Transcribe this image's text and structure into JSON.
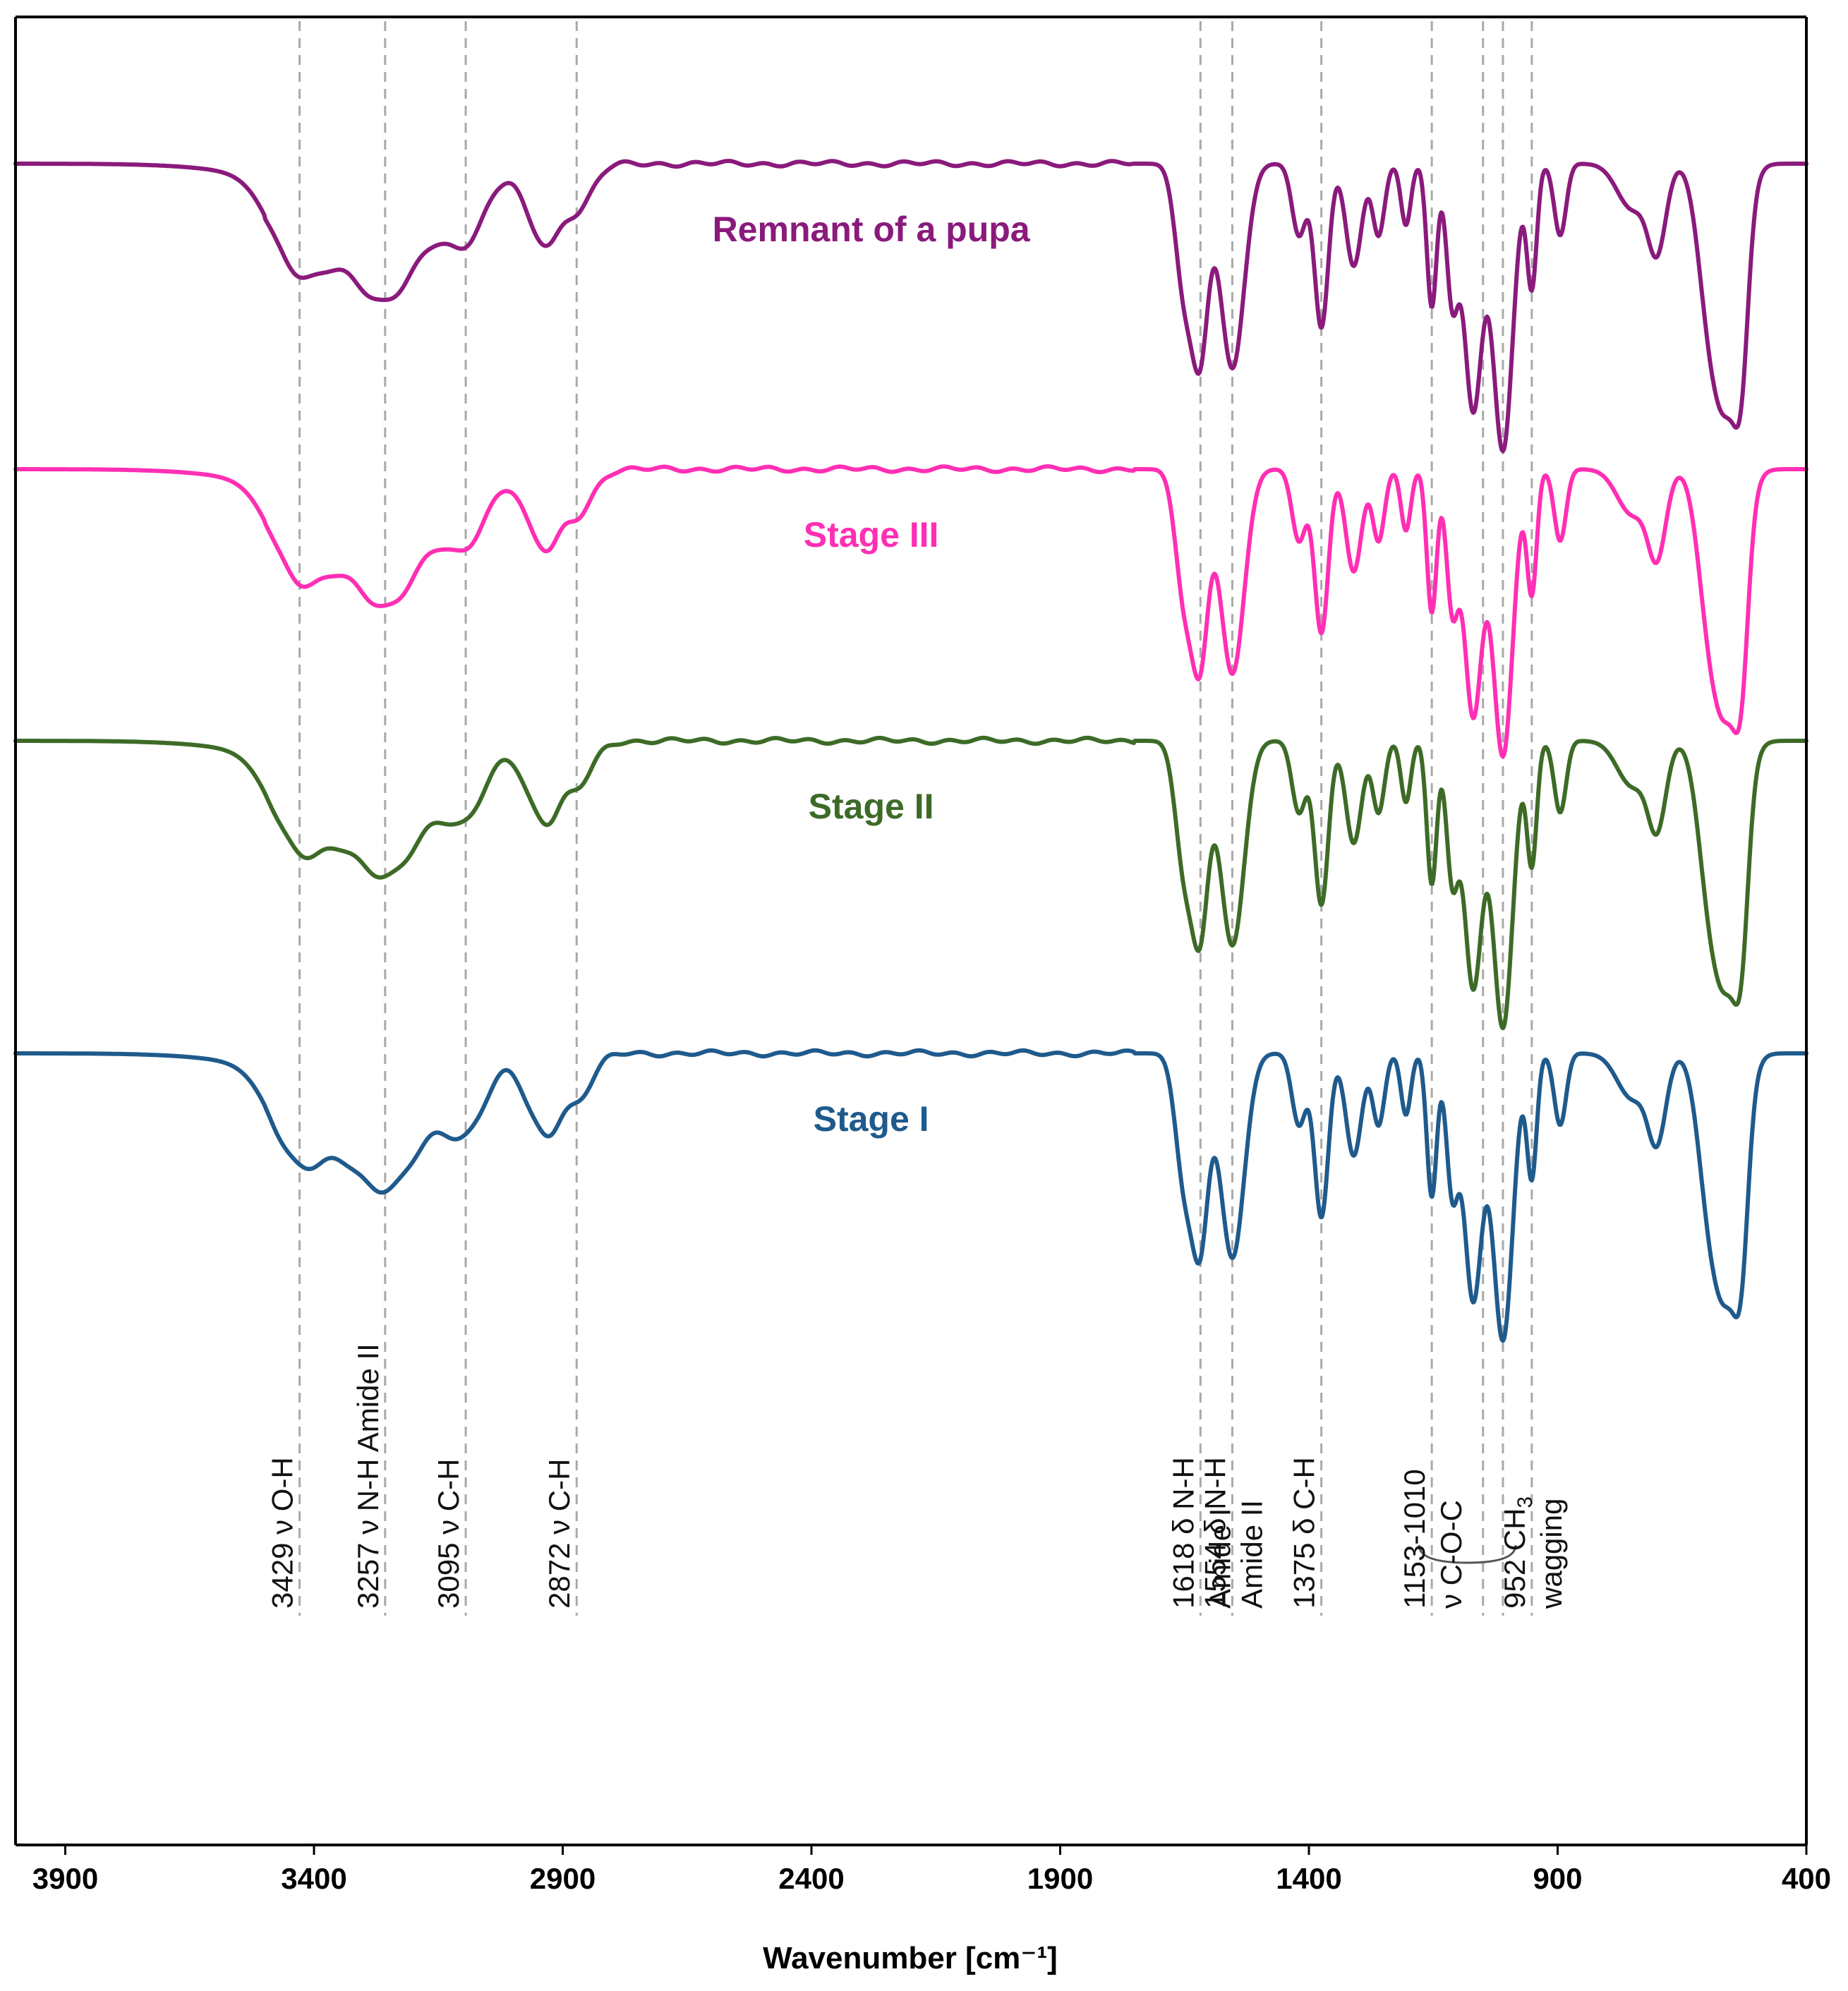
{
  "chart_data": {
    "type": "line",
    "title": "",
    "xlabel": "Wavenumber [cm⁻¹]",
    "ylabel": "",
    "xlim": [
      4000,
      400
    ],
    "x_reversed": true,
    "x_ticks": [
      3900,
      3400,
      2900,
      2400,
      1900,
      1400,
      900,
      400
    ],
    "y_axis_shown": false,
    "colors": {
      "pupa": "#8a1a7c",
      "stage3": "#ff2fb4",
      "stage2": "#3d6b27",
      "stage1": "#1f5a8c"
    },
    "series": [
      {
        "key": "pupa",
        "name": "Remnant of a pupa",
        "offset": 0,
        "label_x": 2280,
        "label_y": 0.62
      },
      {
        "key": "stage3",
        "name": "Stage III",
        "offset": 1,
        "label_x": 2280,
        "label_y": 0.78
      },
      {
        "key": "stage2",
        "name": "Stage II",
        "offset": 2,
        "label_x": 2280,
        "label_y": 0.78
      },
      {
        "key": "stage1",
        "name": "Stage I",
        "offset": 3,
        "label_x": 2280,
        "label_y": 0.78
      }
    ],
    "band_assignments": [
      {
        "wavenumber": 3429,
        "lines": [
          "3429  ν O-H"
        ]
      },
      {
        "wavenumber": 3257,
        "lines": [
          "3257 ν N-H Amide II"
        ]
      },
      {
        "wavenumber": 3095,
        "lines": [
          "3095 ν C-H"
        ]
      },
      {
        "wavenumber": 2872,
        "lines": [
          "2872 ν C-H"
        ]
      },
      {
        "wavenumber": 1618,
        "lines": [
          "1618 δ N-H",
          "Amide I"
        ]
      },
      {
        "wavenumber": 1554,
        "lines": [
          "1554 δ N-H",
          "Amide II"
        ]
      },
      {
        "wavenumber": 1375,
        "lines": [
          "1375 δ C-H"
        ]
      },
      {
        "wavenumber": 1153,
        "lines": [
          "1153-1010",
          "ν C-O-C"
        ],
        "range": [
          1153,
          1010
        ]
      },
      {
        "wavenumber": 952,
        "lines": [
          "952 CH",
          "wagging"
        ],
        "subscript": "3"
      }
    ],
    "absorption_bands": [
      {
        "center": 3429,
        "depth": 0.42,
        "width": 55
      },
      {
        "center": 3257,
        "depth": 0.55,
        "width": 75
      },
      {
        "center": 3095,
        "depth": 0.28,
        "width": 40
      },
      {
        "center": 2960,
        "depth": 0.22,
        "width": 25
      },
      {
        "center": 2925,
        "depth": 0.25,
        "width": 22
      },
      {
        "center": 2872,
        "depth": 0.22,
        "width": 30
      },
      {
        "center": 1650,
        "depth": 0.62,
        "width": 18
      },
      {
        "center": 1618,
        "depth": 0.85,
        "width": 16
      },
      {
        "center": 1554,
        "depth": 1.0,
        "width": 24
      },
      {
        "center": 1420,
        "depth": 0.35,
        "width": 14
      },
      {
        "center": 1375,
        "depth": 0.8,
        "width": 14
      },
      {
        "center": 1310,
        "depth": 0.5,
        "width": 16
      },
      {
        "center": 1260,
        "depth": 0.35,
        "width": 12
      },
      {
        "center": 1205,
        "depth": 0.3,
        "width": 10
      },
      {
        "center": 1153,
        "depth": 0.7,
        "width": 10
      },
      {
        "center": 1112,
        "depth": 0.65,
        "width": 12
      },
      {
        "center": 1070,
        "depth": 1.2,
        "width": 18
      },
      {
        "center": 1010,
        "depth": 1.4,
        "width": 20
      },
      {
        "center": 952,
        "depth": 0.6,
        "width": 10
      },
      {
        "center": 895,
        "depth": 0.35,
        "width": 12
      },
      {
        "center": 750,
        "depth": 0.22,
        "width": 30
      },
      {
        "center": 700,
        "depth": 0.4,
        "width": 18
      },
      {
        "center": 600,
        "depth": 0.45,
        "width": 22
      },
      {
        "center": 560,
        "depth": 1.1,
        "width": 28
      },
      {
        "center": 530,
        "depth": 0.55,
        "width": 14
      }
    ]
  }
}
